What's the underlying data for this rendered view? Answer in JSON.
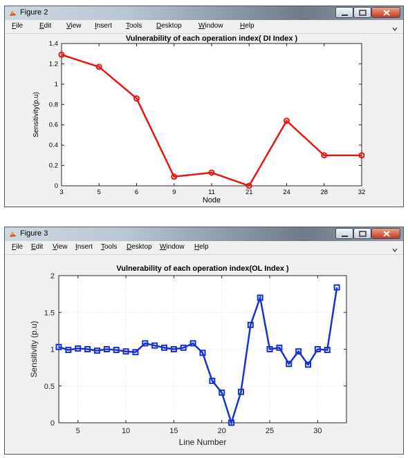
{
  "figures": [
    {
      "window_title": "Figure 2",
      "menu": [
        "File",
        "Edit",
        "View",
        "Insert",
        "Tools",
        "Desktop",
        "Window",
        "Help"
      ],
      "colors": {
        "series": "#e8140e"
      },
      "chart_data": {
        "type": "line",
        "title": "Vulnerability of each operation index( DI Index )",
        "xlabel": "Node",
        "ylabel": "Sensitivity(p.u)",
        "categories": [
          "3",
          "5",
          "6",
          "9",
          "11",
          "21",
          "24",
          "28",
          "32"
        ],
        "values": [
          1.29,
          1.17,
          0.86,
          0.09,
          0.13,
          0.0,
          0.64,
          0.3,
          0.3
        ],
        "ylim": [
          0,
          1.4
        ],
        "yticks": [
          "0",
          "0.2",
          "0.4",
          "0.6",
          "0.8",
          "1",
          "1.2",
          "1.4"
        ],
        "grid": false,
        "marker": "circle"
      }
    },
    {
      "window_title": "Figure 3",
      "menu": [
        "File",
        "Edit",
        "View",
        "Insert",
        "Tools",
        "Desktop",
        "Window",
        "Help"
      ],
      "colors": {
        "series": "#1530d8"
      },
      "chart_data": {
        "type": "line",
        "title": "Vulnerability of each operation index(OL Index )",
        "xlabel": "Line Number",
        "ylabel": "Sensitivity (p.u)",
        "x": [
          3,
          4,
          5,
          6,
          7,
          8,
          9,
          10,
          11,
          12,
          13,
          14,
          15,
          16,
          17,
          18,
          19,
          20,
          21,
          22,
          23,
          24,
          25,
          26,
          27,
          28,
          29,
          30,
          31,
          32
        ],
        "values": [
          1.03,
          0.99,
          1.01,
          1.0,
          0.98,
          1.0,
          0.99,
          0.97,
          0.96,
          1.08,
          1.05,
          1.02,
          1.0,
          1.02,
          1.08,
          0.95,
          0.57,
          0.41,
          0.0,
          0.42,
          1.33,
          1.7,
          1.0,
          1.02,
          0.8,
          0.97,
          0.79,
          1.0,
          0.99,
          1.84
        ],
        "xlim": [
          3,
          33
        ],
        "ylim": [
          0,
          2
        ],
        "xticks": [
          5,
          10,
          15,
          20,
          25,
          30
        ],
        "yticks": [
          0,
          0.5,
          1,
          1.5,
          2
        ],
        "grid": true,
        "marker": "square"
      }
    }
  ]
}
